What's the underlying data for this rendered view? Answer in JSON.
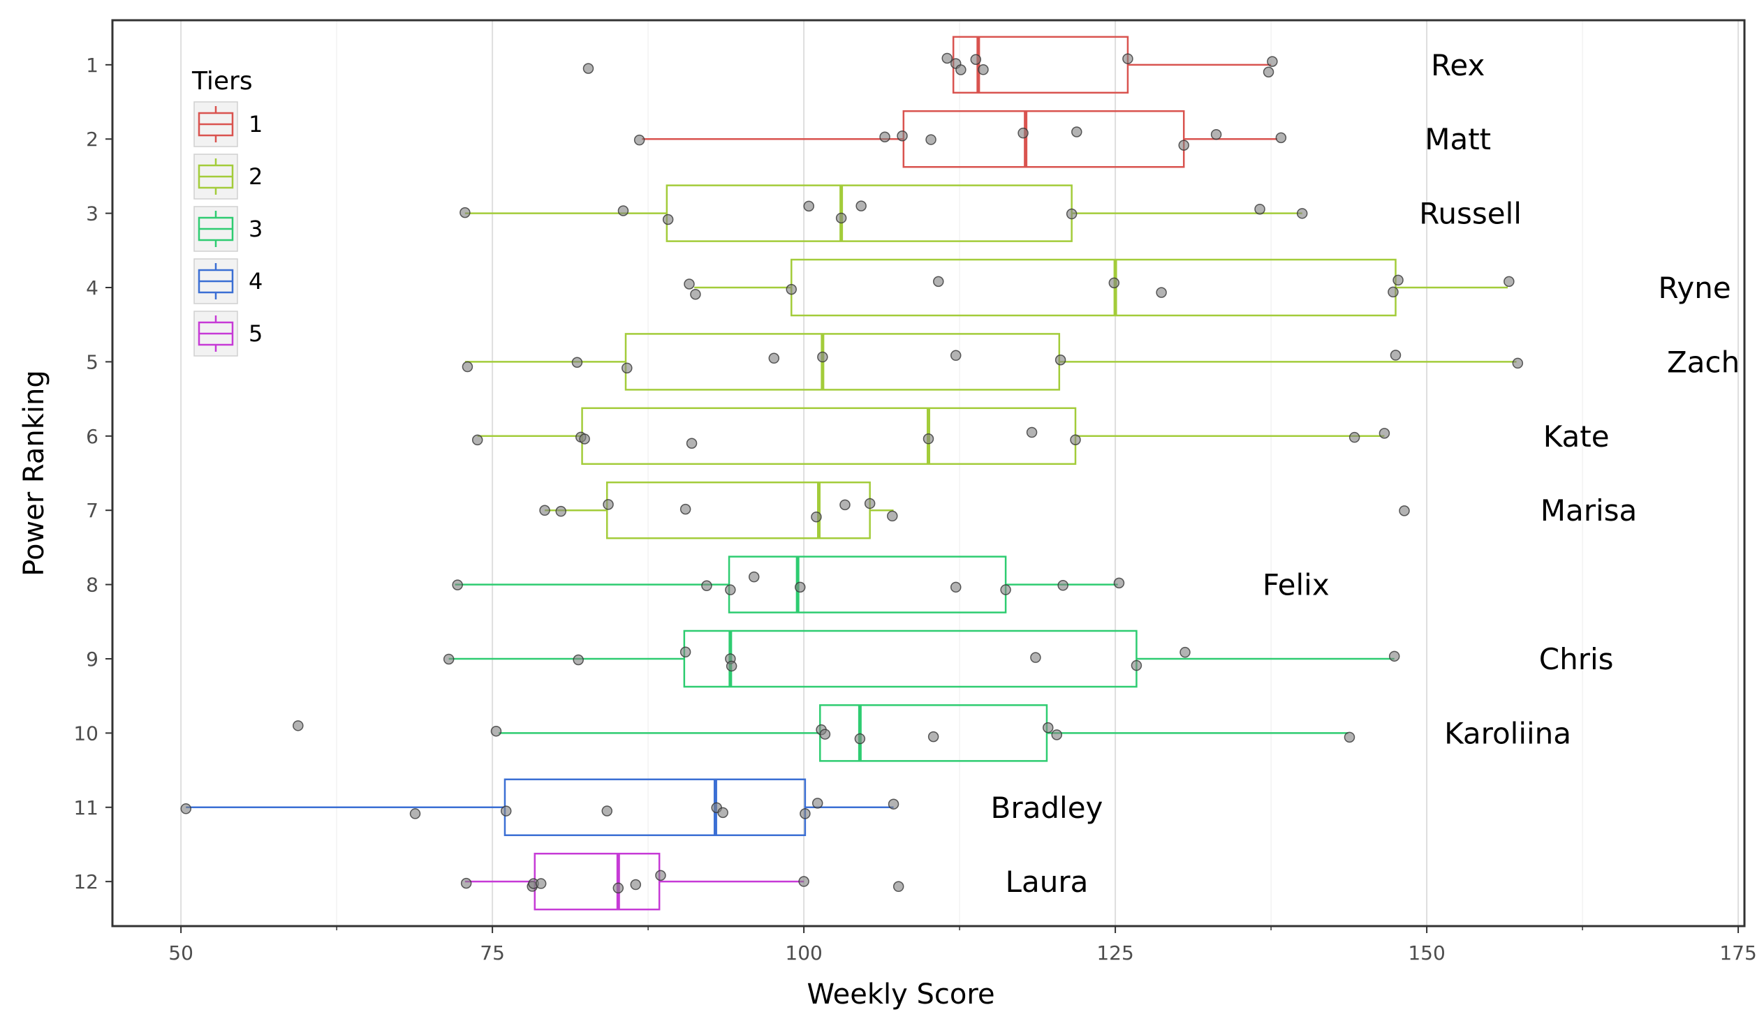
{
  "chart_data": {
    "type": "boxplot",
    "orientation": "horizontal",
    "xlabel": "Weekly Score",
    "ylabel": "Power Ranking",
    "xlim": [
      44.5,
      175.5
    ],
    "ylim": [
      0.4,
      12.6
    ],
    "x_ticks": [
      50,
      75,
      100,
      125,
      150,
      175
    ],
    "y_ticks": [
      1,
      2,
      3,
      4,
      5,
      6,
      7,
      8,
      9,
      10,
      11,
      12
    ],
    "grid": true,
    "legend": {
      "title": "Tiers",
      "position": "top-left",
      "entries": [
        {
          "label": "1",
          "color": "#d9534f"
        },
        {
          "label": "2",
          "color": "#a3cc3a"
        },
        {
          "label": "3",
          "color": "#2ecc71"
        },
        {
          "label": "4",
          "color": "#3b6fd4"
        },
        {
          "label": "5",
          "color": "#c63ad6"
        }
      ]
    },
    "series": [
      {
        "name": "Rex",
        "rank": 1,
        "tier": "1",
        "label_x": 152.5,
        "whisker_low": 112,
        "q1": 112,
        "median": 114,
        "q3": 126,
        "whisker_high": 137.5,
        "points": [
          82.7,
          111.5,
          112.2,
          112.6,
          113.8,
          114.4,
          126,
          137.3,
          137.6
        ]
      },
      {
        "name": "Matt",
        "rank": 2,
        "tier": "1",
        "label_x": 152.5,
        "whisker_low": 87,
        "q1": 108,
        "median": 117.8,
        "q3": 130.5,
        "whisker_high": 138,
        "points": [
          86.8,
          106.5,
          107.9,
          110.2,
          117.6,
          121.9,
          130.5,
          133.1,
          138.3
        ]
      },
      {
        "name": "Russell",
        "rank": 3,
        "tier": "2",
        "label_x": 153.5,
        "whisker_low": 72.8,
        "q1": 89,
        "median": 103,
        "q3": 121.5,
        "whisker_high": 140,
        "points": [
          72.8,
          85.5,
          89.1,
          100.4,
          103,
          104.6,
          121.5,
          136.6,
          140
        ]
      },
      {
        "name": "Ryne",
        "rank": 4,
        "tier": "2",
        "label_x": 171.5,
        "whisker_low": 91.2,
        "q1": 99,
        "median": 125,
        "q3": 147.5,
        "whisker_high": 156.5,
        "points": [
          90.8,
          91.3,
          99,
          110.8,
          124.9,
          128.7,
          147.3,
          147.7,
          156.6
        ]
      },
      {
        "name": "Zach",
        "rank": 5,
        "tier": "2",
        "label_x": 172.2,
        "whisker_low": 72.8,
        "q1": 85.7,
        "median": 101.5,
        "q3": 120.5,
        "whisker_high": 157.2,
        "points": [
          73,
          81.8,
          85.8,
          97.6,
          101.5,
          112.2,
          120.6,
          147.5,
          157.3
        ]
      },
      {
        "name": "Kate",
        "rank": 6,
        "tier": "2",
        "label_x": 162,
        "whisker_low": 73.8,
        "q1": 82.2,
        "median": 110,
        "q3": 121.8,
        "whisker_high": 146.6,
        "points": [
          73.8,
          82.1,
          82.4,
          91,
          110,
          118.3,
          121.8,
          144.2,
          146.6
        ]
      },
      {
        "name": "Marisa",
        "rank": 7,
        "tier": "2",
        "label_x": 163,
        "whisker_low": 79.2,
        "q1": 84.2,
        "median": 101.2,
        "q3": 105.3,
        "whisker_high": 107.2,
        "points": [
          79.2,
          80.5,
          84.3,
          90.5,
          101,
          103.3,
          105.3,
          107.1,
          148.2
        ]
      },
      {
        "name": "Felix",
        "rank": 8,
        "tier": "3",
        "label_x": 139.5,
        "whisker_low": 72,
        "q1": 94,
        "median": 99.5,
        "q3": 116.2,
        "whisker_high": 125.2,
        "points": [
          72.2,
          92.2,
          94.1,
          96,
          99.7,
          112.2,
          116.2,
          120.8,
          125.3
        ]
      },
      {
        "name": "Chris",
        "rank": 9,
        "tier": "3",
        "label_x": 162,
        "whisker_low": 71.5,
        "q1": 90.4,
        "median": 94.1,
        "q3": 126.7,
        "whisker_high": 147.4,
        "points": [
          71.5,
          81.9,
          90.5,
          94.1,
          94.2,
          118.6,
          126.7,
          130.6,
          147.4
        ]
      },
      {
        "name": "Karoliina",
        "rank": 10,
        "tier": "3",
        "label_x": 156.5,
        "whisker_low": 75.5,
        "q1": 101.3,
        "median": 104.5,
        "q3": 119.5,
        "whisker_high": 143.7,
        "points": [
          59.4,
          75.3,
          101.4,
          101.7,
          104.5,
          110.4,
          119.6,
          120.3,
          143.8
        ]
      },
      {
        "name": "Bradley",
        "rank": 11,
        "tier": "4",
        "label_x": 119.5,
        "whisker_low": 50.4,
        "q1": 76,
        "median": 92.9,
        "q3": 100.1,
        "whisker_high": 107.2,
        "points": [
          50.4,
          68.8,
          76.1,
          84.2,
          93,
          93.5,
          100.1,
          101.1,
          107.2
        ]
      },
      {
        "name": "Laura",
        "rank": 12,
        "tier": "5",
        "label_x": 119.5,
        "whisker_low": 72.8,
        "q1": 78.4,
        "median": 85.1,
        "q3": 88.4,
        "whisker_high": 100,
        "points": [
          72.9,
          78.2,
          78.3,
          78.9,
          85.1,
          86.5,
          88.5,
          100,
          107.6
        ]
      }
    ]
  }
}
